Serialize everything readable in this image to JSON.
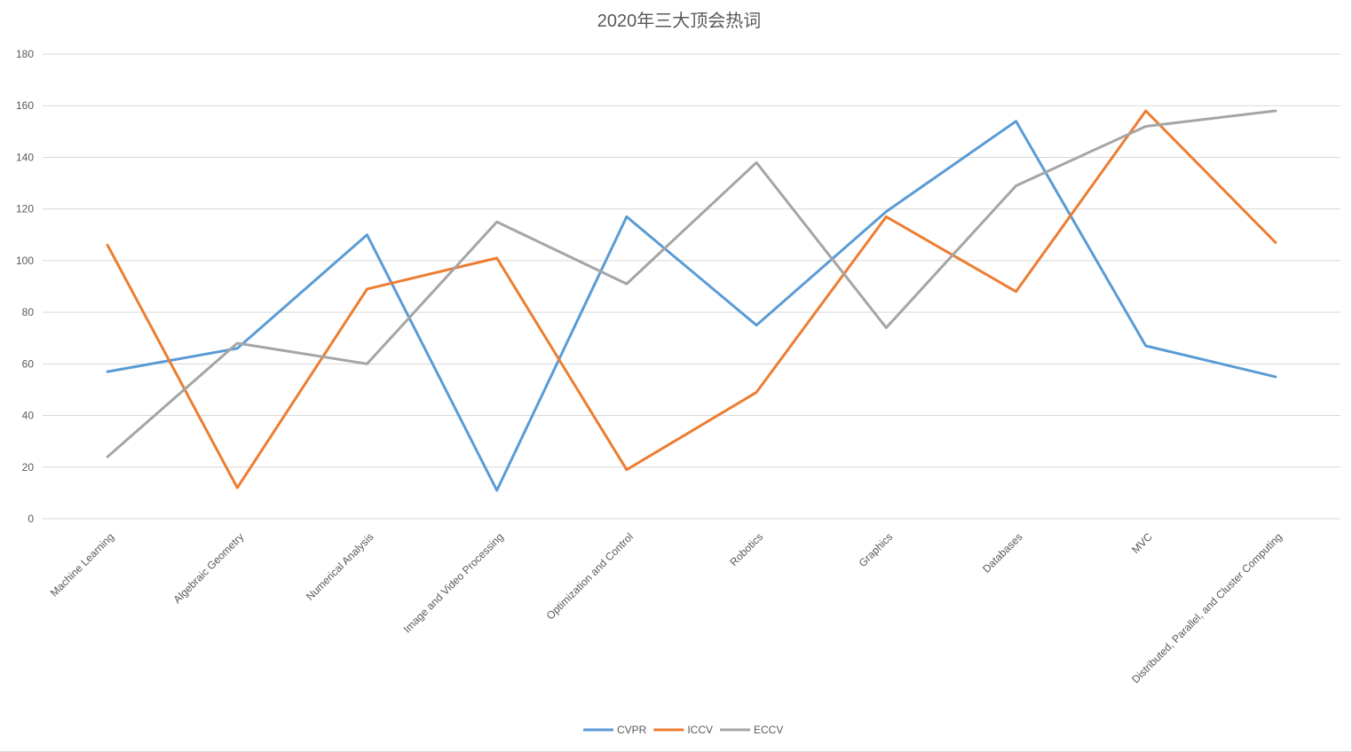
{
  "chart_data": {
    "type": "line",
    "title": "2020年三大顶会热词",
    "xlabel": "",
    "ylabel": "",
    "categories": [
      "Machine Learning",
      "Algebraic Geometry",
      "Numerical Analysis",
      "Image and Video Processing",
      "Optimization and Control",
      "Robotics",
      "Graphics",
      "Databases",
      "MVC",
      "Distributed, Parallel, and Cluster Computing"
    ],
    "series": [
      {
        "name": "CVPR",
        "color": "#5b9bd5",
        "values": [
          57,
          66,
          110,
          11,
          117,
          75,
          119,
          154,
          67,
          55
        ]
      },
      {
        "name": "ICCV",
        "color": "#ed7d31",
        "values": [
          106,
          12,
          89,
          101,
          19,
          49,
          117,
          88,
          158,
          107
        ]
      },
      {
        "name": "ECCV",
        "color": "#a5a5a5",
        "values": [
          24,
          68,
          60,
          115,
          91,
          138,
          74,
          129,
          152,
          158
        ]
      }
    ],
    "ylim": [
      0,
      180
    ],
    "yticks": [
      0,
      20,
      40,
      60,
      80,
      100,
      120,
      140,
      160,
      180
    ],
    "grid": true,
    "legend": "bottom"
  }
}
